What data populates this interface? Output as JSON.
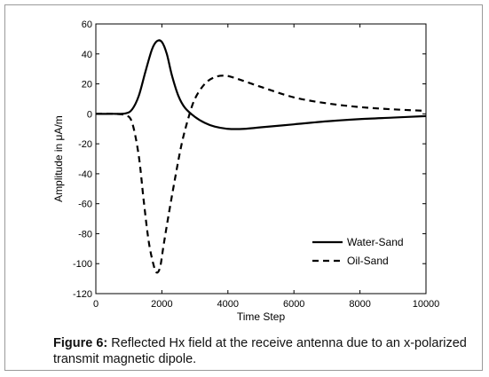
{
  "figure": {
    "caption_label": "Figure 6:",
    "caption_text": " Reflected Hx field at the receive antenna due to an x-polarized transmit magnetic dipole."
  },
  "chart_data": {
    "type": "line",
    "title": "",
    "xlabel": "Time Step",
    "ylabel": "Amplitude in μA/m",
    "xlim": [
      0,
      10000
    ],
    "ylim": [
      -120,
      60
    ],
    "xticks": [
      0,
      2000,
      4000,
      6000,
      8000,
      10000
    ],
    "yticks": [
      60,
      40,
      20,
      0,
      -20,
      -40,
      -60,
      -80,
      -100,
      -120
    ],
    "grid": false,
    "legend_position": "lower-right",
    "series": [
      {
        "name": "Water-Sand",
        "style": "solid",
        "color": "#000000",
        "x": [
          0,
          500,
          900,
          1100,
          1300,
          1500,
          1700,
          1850,
          2000,
          2150,
          2300,
          2500,
          2700,
          3000,
          3300,
          3600,
          4000,
          4500,
          5000,
          6000,
          7000,
          8000,
          9000,
          10000
        ],
        "y": [
          0,
          0,
          0.3,
          3,
          12,
          28,
          43,
          48.5,
          48,
          40,
          26,
          12,
          4,
          -2,
          -6,
          -8.5,
          -10,
          -10,
          -9,
          -7,
          -5,
          -3.5,
          -2.5,
          -1.5
        ]
      },
      {
        "name": "Oil-Sand",
        "style": "dashed",
        "color": "#000000",
        "x": [
          0,
          500,
          900,
          1100,
          1300,
          1450,
          1600,
          1750,
          1850,
          1950,
          2050,
          2200,
          2400,
          2600,
          2800,
          3000,
          3300,
          3600,
          3900,
          4200,
          5000,
          6000,
          7000,
          8000,
          9000,
          10000
        ],
        "y": [
          0,
          0,
          -1,
          -6,
          -28,
          -58,
          -85,
          -101,
          -106,
          -102,
          -88,
          -68,
          -43,
          -20,
          -3,
          10,
          20,
          24.5,
          25.5,
          24,
          18,
          11,
          7,
          4.5,
          3,
          2
        ]
      }
    ]
  }
}
